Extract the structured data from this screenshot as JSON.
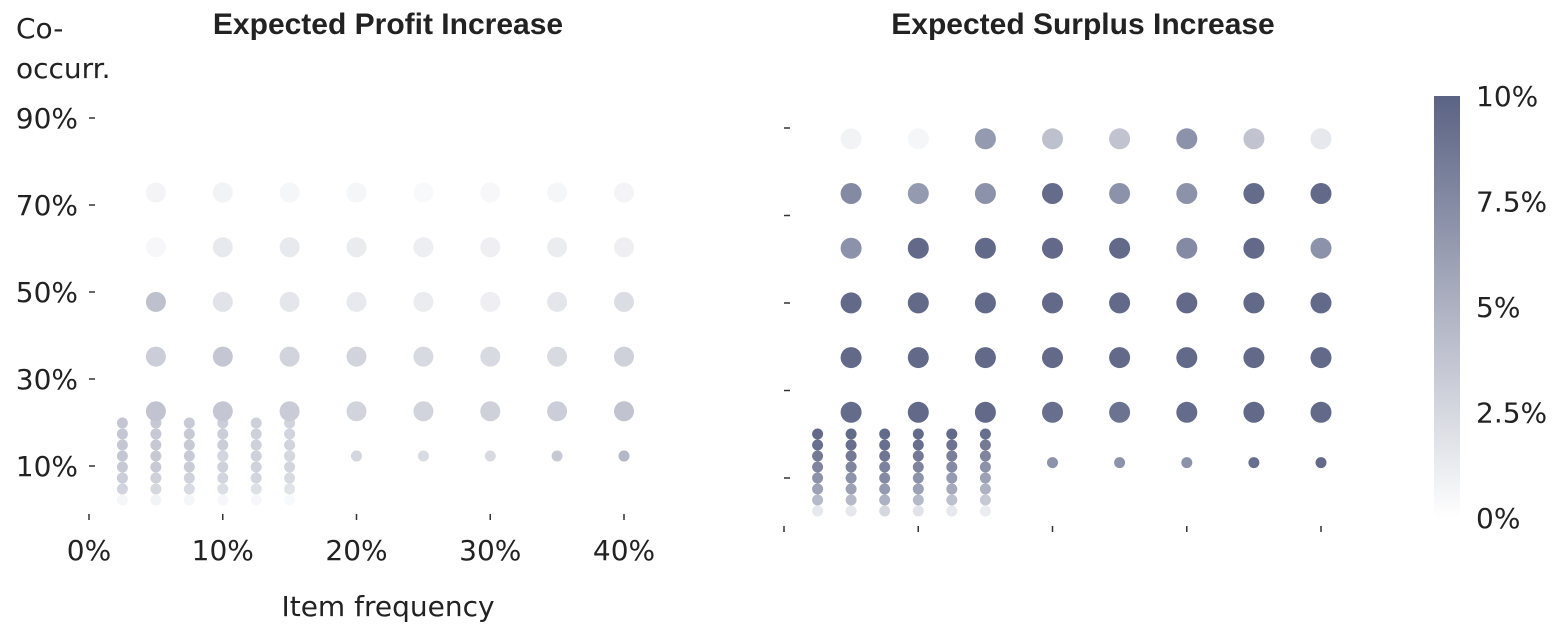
{
  "chart_data": [
    {
      "type": "scatter",
      "title": "Expected Profit Increase",
      "xlabel": "Item frequency",
      "ylabel": "Co-occurr.",
      "x_tick_labels": [
        "0%",
        "10%",
        "20%",
        "30%",
        "40%"
      ],
      "y_tick_labels": [
        "10%",
        "30%",
        "50%",
        "70%",
        "90%"
      ],
      "xlim": [
        0,
        42
      ],
      "ylim": [
        0,
        95
      ],
      "points": [
        {
          "x": 2.5,
          "y": 2.5,
          "v": 0.6
        },
        {
          "x": 2.5,
          "y": 5,
          "v": 2.8
        },
        {
          "x": 2.5,
          "y": 7.5,
          "v": 3.2
        },
        {
          "x": 2.5,
          "y": 10,
          "v": 3.5
        },
        {
          "x": 2.5,
          "y": 12.5,
          "v": 3.6
        },
        {
          "x": 2.5,
          "y": 15,
          "v": 3.6
        },
        {
          "x": 2.5,
          "y": 17.5,
          "v": 3.6
        },
        {
          "x": 2.5,
          "y": 20,
          "v": 3.6
        },
        {
          "x": 5,
          "y": 2.5,
          "v": 0.8
        },
        {
          "x": 5,
          "y": 5,
          "v": 2.5
        },
        {
          "x": 5,
          "y": 7.5,
          "v": 3.0
        },
        {
          "x": 5,
          "y": 10,
          "v": 3.4
        },
        {
          "x": 5,
          "y": 12.5,
          "v": 3.5
        },
        {
          "x": 5,
          "y": 15,
          "v": 3.5
        },
        {
          "x": 5,
          "y": 17.5,
          "v": 3.5
        },
        {
          "x": 5,
          "y": 20,
          "v": 3.5
        },
        {
          "x": 7.5,
          "y": 2.5,
          "v": 0.6
        },
        {
          "x": 7.5,
          "y": 5,
          "v": 2.3
        },
        {
          "x": 7.5,
          "y": 7.5,
          "v": 2.9
        },
        {
          "x": 7.5,
          "y": 10,
          "v": 3.3
        },
        {
          "x": 7.5,
          "y": 12.5,
          "v": 3.4
        },
        {
          "x": 7.5,
          "y": 15,
          "v": 3.4
        },
        {
          "x": 7.5,
          "y": 17.5,
          "v": 3.4
        },
        {
          "x": 7.5,
          "y": 20,
          "v": 3.4
        },
        {
          "x": 10,
          "y": 2.5,
          "v": 0.5
        },
        {
          "x": 10,
          "y": 5,
          "v": 2.1
        },
        {
          "x": 10,
          "y": 7.5,
          "v": 2.7
        },
        {
          "x": 10,
          "y": 10,
          "v": 3.0
        },
        {
          "x": 10,
          "y": 12.5,
          "v": 3.2
        },
        {
          "x": 10,
          "y": 15,
          "v": 3.2
        },
        {
          "x": 10,
          "y": 17.5,
          "v": 3.2
        },
        {
          "x": 10,
          "y": 20,
          "v": 3.2
        },
        {
          "x": 12.5,
          "y": 2.5,
          "v": 0.5
        },
        {
          "x": 12.5,
          "y": 5,
          "v": 2.0
        },
        {
          "x": 12.5,
          "y": 7.5,
          "v": 2.6
        },
        {
          "x": 12.5,
          "y": 10,
          "v": 2.9
        },
        {
          "x": 12.5,
          "y": 12.5,
          "v": 3.0
        },
        {
          "x": 12.5,
          "y": 15,
          "v": 3.0
        },
        {
          "x": 12.5,
          "y": 17.5,
          "v": 3.0
        },
        {
          "x": 12.5,
          "y": 20,
          "v": 3.0
        },
        {
          "x": 15,
          "y": 2.5,
          "v": 0.4
        },
        {
          "x": 15,
          "y": 5,
          "v": 1.8
        },
        {
          "x": 15,
          "y": 7.5,
          "v": 2.4
        },
        {
          "x": 15,
          "y": 10,
          "v": 2.7
        },
        {
          "x": 15,
          "y": 12.5,
          "v": 2.8
        },
        {
          "x": 15,
          "y": 15,
          "v": 2.8
        },
        {
          "x": 15,
          "y": 17.5,
          "v": 2.8
        },
        {
          "x": 15,
          "y": 20,
          "v": 2.8
        },
        {
          "x": 5,
          "y": 25,
          "v": 3.8
        },
        {
          "x": 5,
          "y": 37.5,
          "v": 3.2
        },
        {
          "x": 5,
          "y": 50,
          "v": 4.0
        },
        {
          "x": 5,
          "y": 62.5,
          "v": 0.5
        },
        {
          "x": 5,
          "y": 75,
          "v": 0.7
        },
        {
          "x": 10,
          "y": 12.5,
          "v": 2.6
        },
        {
          "x": 10,
          "y": 25,
          "v": 3.6
        },
        {
          "x": 10,
          "y": 37.5,
          "v": 3.6
        },
        {
          "x": 10,
          "y": 50,
          "v": 1.8
        },
        {
          "x": 10,
          "y": 62.5,
          "v": 1.4
        },
        {
          "x": 10,
          "y": 75,
          "v": 0.8
        },
        {
          "x": 15,
          "y": 12.5,
          "v": 2.5
        },
        {
          "x": 15,
          "y": 25,
          "v": 3.3
        },
        {
          "x": 15,
          "y": 37.5,
          "v": 2.8
        },
        {
          "x": 15,
          "y": 50,
          "v": 1.6
        },
        {
          "x": 15,
          "y": 62.5,
          "v": 1.4
        },
        {
          "x": 15,
          "y": 75,
          "v": 0.6
        },
        {
          "x": 20,
          "y": 12.5,
          "v": 2.6
        },
        {
          "x": 20,
          "y": 25,
          "v": 2.8
        },
        {
          "x": 20,
          "y": 37.5,
          "v": 2.8
        },
        {
          "x": 20,
          "y": 50,
          "v": 1.4
        },
        {
          "x": 20,
          "y": 62.5,
          "v": 1.3
        },
        {
          "x": 20,
          "y": 75,
          "v": 0.6
        },
        {
          "x": 25,
          "y": 12.5,
          "v": 2.3
        },
        {
          "x": 25,
          "y": 25,
          "v": 2.8
        },
        {
          "x": 25,
          "y": 37.5,
          "v": 2.4
        },
        {
          "x": 25,
          "y": 50,
          "v": 1.2
        },
        {
          "x": 25,
          "y": 62.5,
          "v": 1.1
        },
        {
          "x": 25,
          "y": 75,
          "v": 0.4
        },
        {
          "x": 30,
          "y": 12.5,
          "v": 2.4
        },
        {
          "x": 30,
          "y": 25,
          "v": 3.0
        },
        {
          "x": 30,
          "y": 37.5,
          "v": 2.4
        },
        {
          "x": 30,
          "y": 50,
          "v": 1.0
        },
        {
          "x": 30,
          "y": 62.5,
          "v": 1.0
        },
        {
          "x": 30,
          "y": 75,
          "v": 0.5
        },
        {
          "x": 35,
          "y": 12.5,
          "v": 3.4
        },
        {
          "x": 35,
          "y": 25,
          "v": 3.2
        },
        {
          "x": 35,
          "y": 37.5,
          "v": 2.4
        },
        {
          "x": 35,
          "y": 50,
          "v": 1.6
        },
        {
          "x": 35,
          "y": 62.5,
          "v": 1.2
        },
        {
          "x": 35,
          "y": 75,
          "v": 0.6
        },
        {
          "x": 40,
          "y": 12.5,
          "v": 4.6
        },
        {
          "x": 40,
          "y": 25,
          "v": 3.8
        },
        {
          "x": 40,
          "y": 37.5,
          "v": 3.0
        },
        {
          "x": 40,
          "y": 50,
          "v": 2.2
        },
        {
          "x": 40,
          "y": 62.5,
          "v": 1.0
        },
        {
          "x": 40,
          "y": 75,
          "v": 0.7
        }
      ]
    },
    {
      "type": "scatter",
      "title": "Expected Surplus Increase",
      "xlim": [
        0,
        42
      ],
      "ylim": [
        0,
        95
      ],
      "points": [
        {
          "x": 2.5,
          "y": 1,
          "v": 1.5
        },
        {
          "x": 2.5,
          "y": 3.5,
          "v": 4.5
        },
        {
          "x": 2.5,
          "y": 6,
          "v": 6.0
        },
        {
          "x": 2.5,
          "y": 8.5,
          "v": 7.0
        },
        {
          "x": 2.5,
          "y": 11,
          "v": 7.8
        },
        {
          "x": 2.5,
          "y": 13.5,
          "v": 8.5
        },
        {
          "x": 2.5,
          "y": 16,
          "v": 9.2
        },
        {
          "x": 2.5,
          "y": 18.5,
          "v": 9.5
        },
        {
          "x": 5,
          "y": 1,
          "v": 1.5
        },
        {
          "x": 5,
          "y": 3.5,
          "v": 4.5
        },
        {
          "x": 5,
          "y": 6,
          "v": 6.0
        },
        {
          "x": 5,
          "y": 8.5,
          "v": 7.0
        },
        {
          "x": 5,
          "y": 11,
          "v": 7.8
        },
        {
          "x": 5,
          "y": 13.5,
          "v": 8.5
        },
        {
          "x": 5,
          "y": 16,
          "v": 9.2
        },
        {
          "x": 5,
          "y": 18.5,
          "v": 9.5
        },
        {
          "x": 7.5,
          "y": 1,
          "v": 2.5
        },
        {
          "x": 7.5,
          "y": 3.5,
          "v": 5.0
        },
        {
          "x": 7.5,
          "y": 6,
          "v": 6.5
        },
        {
          "x": 7.5,
          "y": 8.5,
          "v": 7.5
        },
        {
          "x": 7.5,
          "y": 11,
          "v": 8.0
        },
        {
          "x": 7.5,
          "y": 13.5,
          "v": 8.8
        },
        {
          "x": 7.5,
          "y": 16,
          "v": 9.2
        },
        {
          "x": 7.5,
          "y": 18.5,
          "v": 9.5
        },
        {
          "x": 10,
          "y": 1,
          "v": 1.8
        },
        {
          "x": 10,
          "y": 3.5,
          "v": 4.5
        },
        {
          "x": 10,
          "y": 6,
          "v": 6.0
        },
        {
          "x": 10,
          "y": 8.5,
          "v": 7.0
        },
        {
          "x": 10,
          "y": 11,
          "v": 7.8
        },
        {
          "x": 10,
          "y": 13.5,
          "v": 8.5
        },
        {
          "x": 10,
          "y": 16,
          "v": 9.2
        },
        {
          "x": 10,
          "y": 18.5,
          "v": 9.5
        },
        {
          "x": 12.5,
          "y": 1,
          "v": 1.5
        },
        {
          "x": 12.5,
          "y": 3.5,
          "v": 4.0
        },
        {
          "x": 12.5,
          "y": 6,
          "v": 5.5
        },
        {
          "x": 12.5,
          "y": 8.5,
          "v": 6.5
        },
        {
          "x": 12.5,
          "y": 11,
          "v": 7.5
        },
        {
          "x": 12.5,
          "y": 13.5,
          "v": 8.2
        },
        {
          "x": 12.5,
          "y": 16,
          "v": 9.0
        },
        {
          "x": 12.5,
          "y": 18.5,
          "v": 9.5
        },
        {
          "x": 15,
          "y": 1,
          "v": 1.2
        },
        {
          "x": 15,
          "y": 3.5,
          "v": 3.5
        },
        {
          "x": 15,
          "y": 6,
          "v": 5.0
        },
        {
          "x": 15,
          "y": 8.5,
          "v": 6.0
        },
        {
          "x": 15,
          "y": 11,
          "v": 7.0
        },
        {
          "x": 15,
          "y": 13.5,
          "v": 7.8
        },
        {
          "x": 15,
          "y": 16,
          "v": 8.5
        },
        {
          "x": 15,
          "y": 18.5,
          "v": 9.2
        },
        {
          "x": 5,
          "y": 24,
          "v": 9.4
        },
        {
          "x": 5,
          "y": 36,
          "v": 9.6
        },
        {
          "x": 5,
          "y": 48,
          "v": 9.6
        },
        {
          "x": 5,
          "y": 60,
          "v": 7.0
        },
        {
          "x": 5,
          "y": 72,
          "v": 7.5
        },
        {
          "x": 5,
          "y": 84,
          "v": 0.8
        },
        {
          "x": 10,
          "y": 24,
          "v": 9.6
        },
        {
          "x": 10,
          "y": 36,
          "v": 9.6
        },
        {
          "x": 10,
          "y": 48,
          "v": 9.6
        },
        {
          "x": 10,
          "y": 60,
          "v": 9.6
        },
        {
          "x": 10,
          "y": 72,
          "v": 6.5
        },
        {
          "x": 10,
          "y": 84,
          "v": 0.6
        },
        {
          "x": 15,
          "y": 24,
          "v": 9.6
        },
        {
          "x": 15,
          "y": 36,
          "v": 9.6
        },
        {
          "x": 15,
          "y": 48,
          "v": 9.6
        },
        {
          "x": 15,
          "y": 60,
          "v": 9.6
        },
        {
          "x": 15,
          "y": 72,
          "v": 7.0
        },
        {
          "x": 15,
          "y": 84,
          "v": 6.5
        },
        {
          "x": 20,
          "y": 12,
          "v": 7.0
        },
        {
          "x": 20,
          "y": 24,
          "v": 9.2
        },
        {
          "x": 20,
          "y": 36,
          "v": 9.6
        },
        {
          "x": 20,
          "y": 48,
          "v": 9.6
        },
        {
          "x": 20,
          "y": 60,
          "v": 9.6
        },
        {
          "x": 20,
          "y": 72,
          "v": 9.4
        },
        {
          "x": 20,
          "y": 84,
          "v": 4.0
        },
        {
          "x": 25,
          "y": 12,
          "v": 7.0
        },
        {
          "x": 25,
          "y": 24,
          "v": 9.0
        },
        {
          "x": 25,
          "y": 36,
          "v": 9.6
        },
        {
          "x": 25,
          "y": 48,
          "v": 9.6
        },
        {
          "x": 25,
          "y": 60,
          "v": 9.6
        },
        {
          "x": 25,
          "y": 72,
          "v": 7.0
        },
        {
          "x": 25,
          "y": 84,
          "v": 3.8
        },
        {
          "x": 30,
          "y": 12,
          "v": 7.0
        },
        {
          "x": 30,
          "y": 24,
          "v": 9.4
        },
        {
          "x": 30,
          "y": 36,
          "v": 9.6
        },
        {
          "x": 30,
          "y": 48,
          "v": 9.6
        },
        {
          "x": 30,
          "y": 60,
          "v": 7.5
        },
        {
          "x": 30,
          "y": 72,
          "v": 7.0
        },
        {
          "x": 30,
          "y": 84,
          "v": 7.0
        },
        {
          "x": 35,
          "y": 12,
          "v": 9.2
        },
        {
          "x": 35,
          "y": 24,
          "v": 9.6
        },
        {
          "x": 35,
          "y": 36,
          "v": 9.6
        },
        {
          "x": 35,
          "y": 48,
          "v": 9.6
        },
        {
          "x": 35,
          "y": 60,
          "v": 9.6
        },
        {
          "x": 35,
          "y": 72,
          "v": 9.4
        },
        {
          "x": 35,
          "y": 84,
          "v": 3.8
        },
        {
          "x": 40,
          "y": 12,
          "v": 9.6
        },
        {
          "x": 40,
          "y": 24,
          "v": 9.6
        },
        {
          "x": 40,
          "y": 36,
          "v": 9.6
        },
        {
          "x": 40,
          "y": 48,
          "v": 9.6
        },
        {
          "x": 40,
          "y": 60,
          "v": 7.0
        },
        {
          "x": 40,
          "y": 72,
          "v": 9.6
        },
        {
          "x": 40,
          "y": 84,
          "v": 1.5
        }
      ]
    }
  ],
  "colorbar": {
    "tick_labels": [
      "10%",
      "7.5%",
      "5%",
      "2.5%",
      "0%"
    ],
    "range": [
      0,
      10
    ],
    "color_low": "#ffffff",
    "color_high": "#5b6384"
  }
}
